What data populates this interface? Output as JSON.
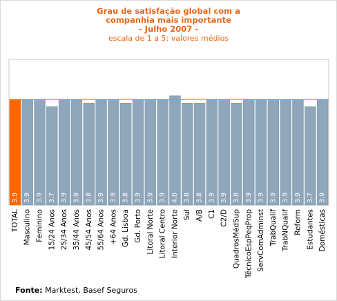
{
  "chart_data": {
    "type": "bar",
    "title_lines": [
      "Grau de satisfação global com a",
      "companhia mais importante",
      "- Julho 2007 -"
    ],
    "subtitle": "escala de 1 a 5; valores médios",
    "categories": [
      "TOTAL",
      "Masculino",
      "Feminino",
      "15/24 Anos",
      "25/34 Anos",
      "35/44 Anos",
      "45/54 Anos",
      "55/64 Anos",
      "+64 Anos",
      "Gd. Lisboa",
      "Gd. Porto",
      "Litoral Norte",
      "Litoral Centro",
      "Interior Norte",
      "Sul",
      "A/B",
      "C1",
      "C2/D",
      "QuadrosMédSup",
      "TécnicoEspPeqProp",
      "ServComAdminst",
      "TrabQualif",
      "TrabNQualif",
      "Reform",
      "Estudantes",
      "Domésticas"
    ],
    "values": [
      3.9,
      3.9,
      3.9,
      3.7,
      3.9,
      3.9,
      3.8,
      3.9,
      3.9,
      3.8,
      3.9,
      3.9,
      3.9,
      4.0,
      3.8,
      3.8,
      3.9,
      3.9,
      3.8,
      3.9,
      3.9,
      3.9,
      3.9,
      3.9,
      3.7,
      3.9
    ],
    "value_labels": [
      "3.9",
      "3.9",
      "3.9",
      "3.7",
      "3.9",
      "3.9",
      "3.8",
      "3.9",
      "3.9",
      "3.8",
      "3.9",
      "3.9",
      "3.9",
      "4.0",
      "3.8",
      "3.8",
      "3.9",
      "3.9",
      "3.8",
      "3.9",
      "3.9",
      "3.9",
      "3.9",
      "3.9",
      "3.7",
      "3.9"
    ],
    "highlight_index": 0,
    "reference_line_value": 3.9,
    "ylim": [
      1,
      5
    ],
    "colors": {
      "highlight": "#ff6600",
      "bar": "#8fa6bb",
      "bar_stroke": "#7e96ac",
      "reference_line": "#d98a3a",
      "plot_bg": "#ffffff",
      "plot_border": "#c8c8c8"
    }
  },
  "source": {
    "label": "Fonte:",
    "text": " Marktest, Basef Seguros"
  }
}
